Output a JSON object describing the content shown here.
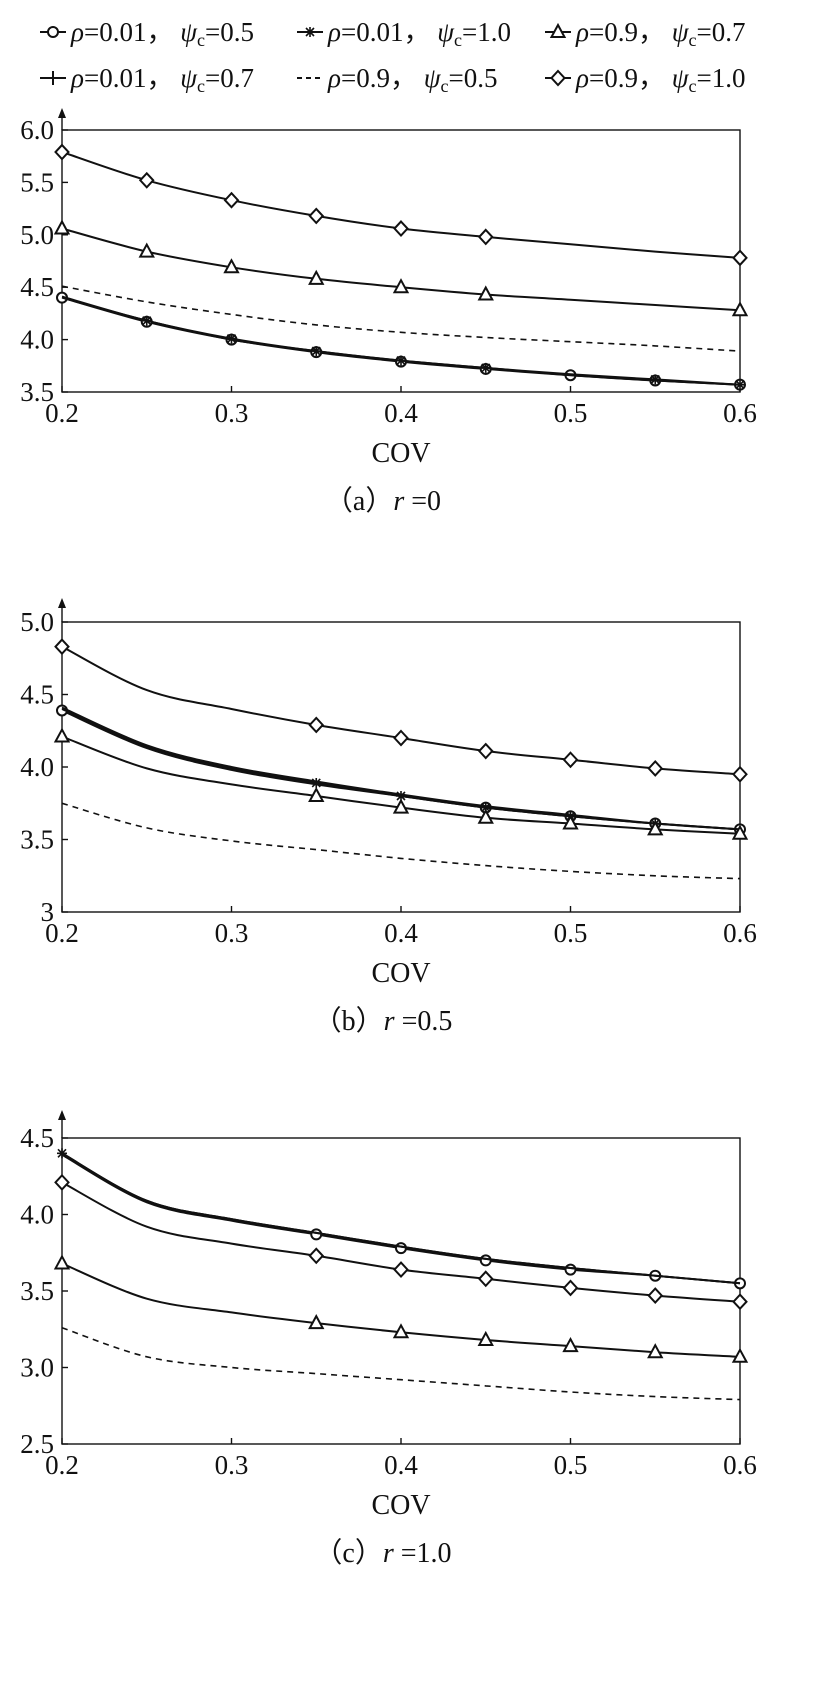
{
  "legend": {
    "entries": [
      {
        "id": "s1",
        "rho": "0.01",
        "psi": "0.5",
        "marker": "circle",
        "dash": false
      },
      {
        "id": "s2",
        "rho": "0.01",
        "psi": "1.0",
        "marker": "star",
        "dash": false
      },
      {
        "id": "s3",
        "rho": "0.9",
        "psi": "0.7",
        "marker": "triangle",
        "dash": false
      },
      {
        "id": "s4",
        "rho": "0.01",
        "psi": "0.7",
        "marker": "plus",
        "dash": false
      },
      {
        "id": "s5",
        "rho": "0.9",
        "psi": "0.5",
        "marker": "none",
        "dash": true
      },
      {
        "id": "s6",
        "rho": "0.9",
        "psi": "1.0",
        "marker": "diamond",
        "dash": false
      }
    ]
  },
  "chart_data": [
    {
      "type": "line",
      "caption": {
        "open": "（a）",
        "var": "r",
        "eq": "=0"
      },
      "xlabel": "COV",
      "ylabel": "",
      "xlim": [
        0.2,
        0.6
      ],
      "ylim": [
        3.5,
        6.0
      ],
      "xticks": [
        "0.2",
        "0.3",
        "0.4",
        "0.5",
        "0.6"
      ],
      "yticks": [
        "3.5",
        "4.0",
        "4.5",
        "5.0",
        "5.5",
        "6.0"
      ],
      "series": [
        {
          "id": "s1",
          "marker": "circle",
          "dash": false,
          "x": [
            0.2,
            0.25,
            0.3,
            0.35,
            0.4,
            0.45,
            0.5,
            0.55,
            0.6
          ],
          "y": [
            4.4,
            4.17,
            4.0,
            3.88,
            3.79,
            3.72,
            3.66,
            3.61,
            3.57
          ],
          "markers_at": [
            0.2,
            0.25,
            0.3,
            0.35,
            0.4,
            0.45,
            0.5,
            0.55,
            0.6
          ]
        },
        {
          "id": "s2",
          "marker": "star",
          "dash": false,
          "x": [
            0.2,
            0.25,
            0.3,
            0.35,
            0.4,
            0.45,
            0.5,
            0.55,
            0.6
          ],
          "y": [
            4.41,
            4.18,
            4.01,
            3.89,
            3.8,
            3.73,
            3.67,
            3.62,
            3.57
          ],
          "markers_at": [
            0.25,
            0.3,
            0.35,
            0.4,
            0.45,
            0.55,
            0.6
          ]
        },
        {
          "id": "s4",
          "marker": "plus",
          "dash": false,
          "x": [
            0.2,
            0.25,
            0.3,
            0.35,
            0.4,
            0.45,
            0.5,
            0.55,
            0.6
          ],
          "y": [
            4.4,
            4.18,
            4.0,
            3.89,
            3.8,
            3.73,
            3.66,
            3.61,
            3.57
          ],
          "markers_at": []
        },
        {
          "id": "s5",
          "marker": "none",
          "dash": true,
          "x": [
            0.2,
            0.25,
            0.3,
            0.35,
            0.4,
            0.45,
            0.5,
            0.55,
            0.6
          ],
          "y": [
            4.51,
            4.36,
            4.24,
            4.14,
            4.07,
            4.02,
            3.98,
            3.94,
            3.89
          ],
          "markers_at": []
        },
        {
          "id": "s3",
          "marker": "triangle",
          "dash": false,
          "x": [
            0.2,
            0.25,
            0.3,
            0.35,
            0.4,
            0.45,
            0.5,
            0.55,
            0.6
          ],
          "y": [
            5.06,
            4.84,
            4.69,
            4.58,
            4.5,
            4.43,
            4.38,
            4.33,
            4.28
          ],
          "markers_at": [
            0.2,
            0.25,
            0.3,
            0.35,
            0.4,
            0.45,
            0.6
          ]
        },
        {
          "id": "s6",
          "marker": "diamond",
          "dash": false,
          "x": [
            0.2,
            0.25,
            0.3,
            0.35,
            0.4,
            0.45,
            0.5,
            0.55,
            0.6
          ],
          "y": [
            5.79,
            5.52,
            5.33,
            5.18,
            5.06,
            4.98,
            4.91,
            4.84,
            4.78
          ],
          "markers_at": [
            0.2,
            0.25,
            0.3,
            0.35,
            0.4,
            0.45,
            0.6
          ]
        }
      ]
    },
    {
      "type": "line",
      "caption": {
        "open": "（b）",
        "var": "r",
        "eq": "=0.5"
      },
      "xlabel": "COV",
      "ylabel": "",
      "xlim": [
        0.2,
        0.6
      ],
      "ylim": [
        3.0,
        5.0
      ],
      "xticks": [
        "0.2",
        "0.3",
        "0.4",
        "0.5",
        "0.6"
      ],
      "yticks": [
        "3",
        "3.5",
        "4.0",
        "4.5",
        "5.0"
      ],
      "series": [
        {
          "id": "s1",
          "marker": "circle",
          "dash": false,
          "x": [
            0.2,
            0.25,
            0.3,
            0.35,
            0.4,
            0.45,
            0.5,
            0.55,
            0.6
          ],
          "y": [
            4.39,
            4.13,
            3.98,
            3.88,
            3.8,
            3.72,
            3.66,
            3.61,
            3.57
          ],
          "markers_at": [
            0.2,
            0.45,
            0.5,
            0.55,
            0.6
          ]
        },
        {
          "id": "s2",
          "marker": "star",
          "dash": false,
          "x": [
            0.2,
            0.25,
            0.3,
            0.35,
            0.4,
            0.45,
            0.5,
            0.55,
            0.6
          ],
          "y": [
            4.4,
            4.14,
            3.99,
            3.89,
            3.8,
            3.72,
            3.66,
            3.61,
            3.57
          ],
          "markers_at": [
            0.35,
            0.4,
            0.45,
            0.5,
            0.55
          ]
        },
        {
          "id": "s4",
          "marker": "plus",
          "dash": false,
          "x": [
            0.2,
            0.25,
            0.3,
            0.35,
            0.4,
            0.45,
            0.5,
            0.55,
            0.6
          ],
          "y": [
            4.41,
            4.15,
            4.0,
            3.9,
            3.81,
            3.73,
            3.67,
            3.61,
            3.57
          ],
          "markers_at": []
        },
        {
          "id": "s3",
          "marker": "triangle",
          "dash": false,
          "x": [
            0.2,
            0.25,
            0.3,
            0.35,
            0.4,
            0.45,
            0.5,
            0.55,
            0.6
          ],
          "y": [
            4.21,
            3.99,
            3.88,
            3.8,
            3.72,
            3.65,
            3.61,
            3.57,
            3.54
          ],
          "markers_at": [
            0.2,
            0.35,
            0.4,
            0.45,
            0.5,
            0.55,
            0.6
          ]
        },
        {
          "id": "s5",
          "marker": "none",
          "dash": true,
          "x": [
            0.2,
            0.25,
            0.3,
            0.35,
            0.4,
            0.45,
            0.5,
            0.55,
            0.6
          ],
          "y": [
            3.75,
            3.58,
            3.49,
            3.43,
            3.37,
            3.32,
            3.28,
            3.25,
            3.23
          ],
          "markers_at": []
        },
        {
          "id": "s6",
          "marker": "diamond",
          "dash": false,
          "x": [
            0.2,
            0.25,
            0.3,
            0.35,
            0.4,
            0.45,
            0.5,
            0.55,
            0.6
          ],
          "y": [
            4.83,
            4.53,
            4.4,
            4.29,
            4.2,
            4.11,
            4.05,
            3.99,
            3.95
          ],
          "markers_at": [
            0.2,
            0.35,
            0.4,
            0.45,
            0.5,
            0.55,
            0.6
          ]
        }
      ]
    },
    {
      "type": "line",
      "caption": {
        "open": "（c）",
        "var": "r",
        "eq": "=1.0"
      },
      "xlabel": "COV",
      "ylabel": "",
      "xlim": [
        0.2,
        0.6
      ],
      "ylim": [
        2.5,
        4.5
      ],
      "xticks": [
        "0.2",
        "0.3",
        "0.4",
        "0.5",
        "0.6"
      ],
      "yticks": [
        "2.5",
        "3.0",
        "3.5",
        "4.0",
        "4.5"
      ],
      "series": [
        {
          "id": "s1",
          "marker": "circle",
          "dash": false,
          "x": [
            0.2,
            0.25,
            0.3,
            0.35,
            0.4,
            0.45,
            0.5,
            0.55,
            0.6
          ],
          "y": [
            4.39,
            4.08,
            3.96,
            3.87,
            3.78,
            3.7,
            3.64,
            3.6,
            3.55
          ],
          "markers_at": [
            0.35,
            0.4,
            0.45,
            0.5,
            0.55,
            0.6
          ]
        },
        {
          "id": "s2",
          "marker": "star",
          "dash": false,
          "x": [
            0.2,
            0.25,
            0.3,
            0.35,
            0.4,
            0.45,
            0.5,
            0.55,
            0.6
          ],
          "y": [
            4.4,
            4.09,
            3.97,
            3.88,
            3.79,
            3.71,
            3.65,
            3.6,
            3.55
          ],
          "markers_at": [
            0.2
          ]
        },
        {
          "id": "s4",
          "marker": "plus",
          "dash": false,
          "x": [
            0.2,
            0.25,
            0.3,
            0.35,
            0.4,
            0.45,
            0.5,
            0.55,
            0.6
          ],
          "y": [
            4.4,
            4.09,
            3.97,
            3.88,
            3.79,
            3.71,
            3.65,
            3.6,
            3.55
          ],
          "markers_at": []
        },
        {
          "id": "s6",
          "marker": "diamond",
          "dash": false,
          "x": [
            0.2,
            0.25,
            0.3,
            0.35,
            0.4,
            0.45,
            0.5,
            0.55,
            0.6
          ],
          "y": [
            4.21,
            3.92,
            3.81,
            3.73,
            3.64,
            3.58,
            3.52,
            3.47,
            3.43
          ],
          "markers_at": [
            0.2,
            0.35,
            0.4,
            0.45,
            0.5,
            0.55,
            0.6
          ]
        },
        {
          "id": "s3",
          "marker": "triangle",
          "dash": false,
          "x": [
            0.2,
            0.25,
            0.3,
            0.35,
            0.4,
            0.45,
            0.5,
            0.55,
            0.6
          ],
          "y": [
            3.68,
            3.45,
            3.36,
            3.29,
            3.23,
            3.18,
            3.14,
            3.1,
            3.07
          ],
          "markers_at": [
            0.2,
            0.35,
            0.4,
            0.45,
            0.5,
            0.55,
            0.6
          ]
        },
        {
          "id": "s5",
          "marker": "none",
          "dash": true,
          "x": [
            0.2,
            0.25,
            0.3,
            0.35,
            0.4,
            0.45,
            0.5,
            0.55,
            0.6
          ],
          "y": [
            3.26,
            3.07,
            3.0,
            2.96,
            2.92,
            2.88,
            2.84,
            2.81,
            2.79
          ],
          "markers_at": []
        }
      ]
    }
  ]
}
